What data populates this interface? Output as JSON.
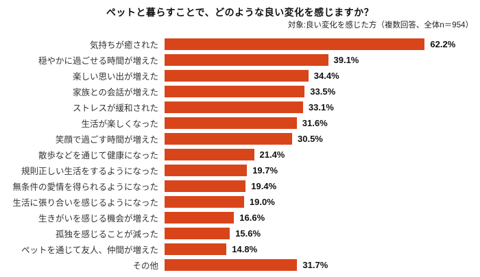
{
  "chart_data": {
    "type": "bar",
    "orientation": "horizontal",
    "title": "ペットと暮らすことで、どのような良い変化を感じますか？",
    "subtitle": "対象:良い変化を感じた方（複数回答、全体n＝954）",
    "categories": [
      "気持ちが癒された",
      "穏やかに過ごせる時間が増えた",
      "楽しい思い出が増えた",
      "家族との会話が増えた",
      "ストレスが緩和された",
      "生活が楽しくなった",
      "笑顔で過ごす時間が増えた",
      "散歩などを通じて健康になった",
      "規則正しい生活をするようになった",
      "無条件の愛情を得られるようになった",
      "生活に張り合いを感じるようになった",
      "生きがいを感じる機会が増えた",
      "孤独を感じることが減った",
      "ペットを通じて友人、仲間が増えた",
      "その他"
    ],
    "values": [
      62.2,
      39.1,
      34.4,
      33.5,
      33.1,
      31.6,
      30.5,
      21.4,
      19.7,
      19.4,
      19.0,
      16.6,
      15.6,
      14.8,
      31.7
    ],
    "value_suffix": "%",
    "xlabel": "",
    "ylabel": "",
    "xlim": [
      0,
      70
    ],
    "grid": false,
    "legend": false,
    "data_labels": true,
    "bar_color": "#d9451a",
    "label_color": "#333333",
    "value_label_color": "#111111"
  }
}
